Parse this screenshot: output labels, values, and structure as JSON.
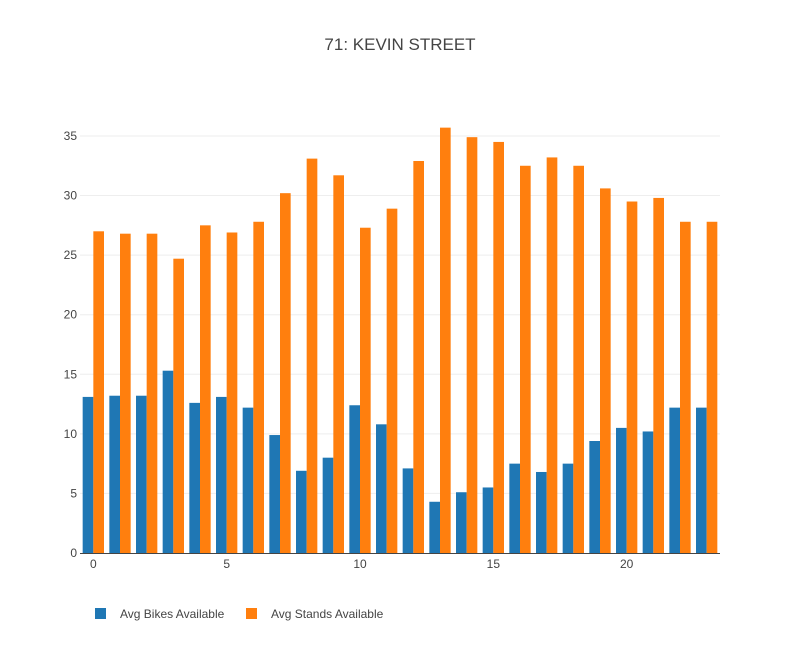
{
  "chart_data": {
    "type": "bar",
    "title": "71: KEVIN STREET",
    "xlabel": "",
    "ylabel": "",
    "x": [
      0,
      1,
      2,
      3,
      4,
      5,
      6,
      7,
      8,
      9,
      10,
      11,
      12,
      13,
      14,
      15,
      16,
      17,
      18,
      19,
      20,
      21,
      22,
      23
    ],
    "x_ticks": [
      0,
      5,
      10,
      15,
      20
    ],
    "y_ticks": [
      0,
      5,
      10,
      15,
      20,
      25,
      30,
      35
    ],
    "xlim": [
      -0.5,
      23.5
    ],
    "ylim": [
      0,
      37.6
    ],
    "grid": "horizontal",
    "legend_position": "bottom-left",
    "series": [
      {
        "name": "Avg Bikes Available",
        "color": "#1f77b4",
        "values": [
          13.1,
          13.2,
          13.2,
          15.3,
          12.6,
          13.1,
          12.2,
          9.9,
          6.9,
          8.0,
          12.4,
          10.8,
          7.1,
          4.3,
          5.1,
          5.5,
          7.5,
          6.8,
          7.5,
          9.4,
          10.5,
          10.2,
          12.2,
          12.2
        ]
      },
      {
        "name": "Avg Stands Available",
        "color": "#ff7f0e",
        "values": [
          27.0,
          26.8,
          26.8,
          24.7,
          27.5,
          26.9,
          27.8,
          30.2,
          33.1,
          31.7,
          27.3,
          28.9,
          32.9,
          35.7,
          34.9,
          34.5,
          32.5,
          33.2,
          32.5,
          30.6,
          29.5,
          29.8,
          27.8,
          27.8
        ]
      }
    ]
  }
}
